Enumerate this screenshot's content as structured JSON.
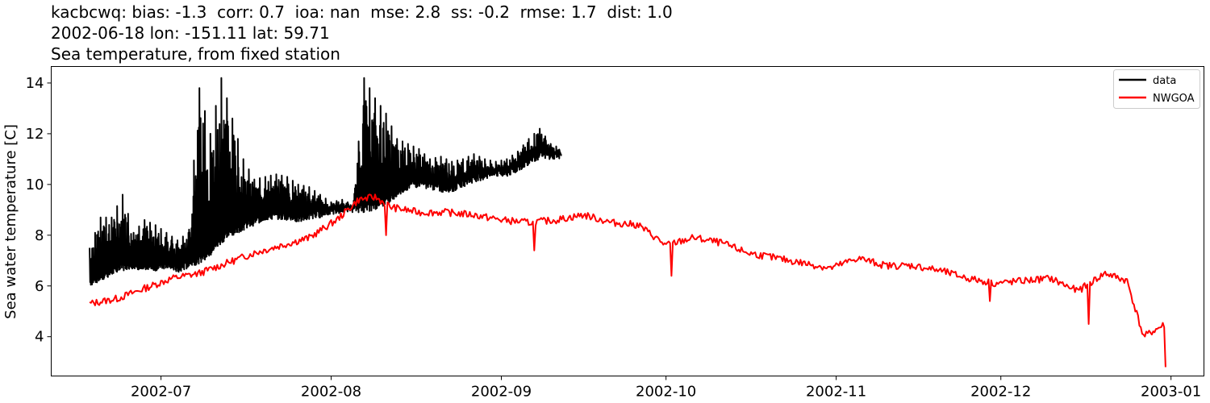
{
  "chart_data": {
    "type": "line",
    "title_lines": [
      "kacbcwq: bias: -1.3  corr: 0.7  ioa: nan  mse: 2.8  ss: -0.2  rmse: 1.7  dist: 1.0",
      "2002-06-18 lon: -151.11 lat: 59.71",
      "Sea temperature, from fixed station"
    ],
    "xlabel": "",
    "ylabel": "Sea water temperature [C]",
    "xlim": [
      "2002-06-11",
      "2003-01-07"
    ],
    "ylim": [
      2.45,
      14.65
    ],
    "x_ticks": [
      "2002-07",
      "2002-08",
      "2002-09",
      "2002-10",
      "2002-11",
      "2002-12",
      "2003-01"
    ],
    "y_ticks": [
      4,
      6,
      8,
      10,
      12,
      14
    ],
    "grid": false,
    "legend_position": "top-right",
    "series": [
      {
        "name": "data",
        "color": "#000000",
        "x": [
          "2002-06-18",
          "2002-06-20",
          "2002-06-22",
          "2002-06-24",
          "2002-06-26",
          "2002-06-28",
          "2002-06-30",
          "2002-07-02",
          "2002-07-04",
          "2002-07-06",
          "2002-07-08",
          "2002-07-10",
          "2002-07-12",
          "2002-07-14",
          "2002-07-16",
          "2002-07-18",
          "2002-07-20",
          "2002-07-22",
          "2002-07-24",
          "2002-07-26",
          "2002-07-28",
          "2002-07-30",
          "2002-08-01",
          "2002-08-03",
          "2002-08-05",
          "2002-08-07",
          "2002-08-09",
          "2002-08-11",
          "2002-08-13",
          "2002-08-15",
          "2002-08-17",
          "2002-08-19",
          "2002-08-21",
          "2002-08-23",
          "2002-08-25",
          "2002-08-27",
          "2002-08-29",
          "2002-08-31",
          "2002-09-02",
          "2002-09-04",
          "2002-09-06",
          "2002-09-08",
          "2002-09-10",
          "2002-09-12"
        ],
        "y_low": [
          6.0,
          6.2,
          6.4,
          6.6,
          6.7,
          6.5,
          6.6,
          6.7,
          6.5,
          6.7,
          6.9,
          7.2,
          7.7,
          8.0,
          8.2,
          8.4,
          8.6,
          8.6,
          8.6,
          8.5,
          8.6,
          8.7,
          8.8,
          8.9,
          8.9,
          8.9,
          9.0,
          9.2,
          9.5,
          9.8,
          9.9,
          9.8,
          9.7,
          9.7,
          9.9,
          10.1,
          10.2,
          10.3,
          10.3,
          10.5,
          10.8,
          11.0,
          11.0,
          11.0
        ],
        "y_high": [
          7.5,
          8.7,
          8.7,
          9.6,
          8.1,
          8.6,
          8.4,
          8.1,
          7.8,
          8.1,
          13.8,
          12.0,
          14.2,
          12.6,
          11.0,
          10.2,
          10.3,
          10.4,
          10.3,
          10.0,
          9.9,
          9.6,
          9.3,
          9.4,
          9.2,
          14.2,
          13.4,
          12.8,
          11.8,
          11.6,
          11.4,
          11.0,
          11.1,
          10.9,
          11.0,
          11.2,
          11.0,
          10.9,
          11.0,
          11.3,
          11.8,
          12.2,
          11.6,
          11.4
        ]
      },
      {
        "name": "NWGOA",
        "color": "#ff0000",
        "x": [
          "2002-06-18",
          "2002-06-23",
          "2002-06-28",
          "2002-07-03",
          "2002-07-08",
          "2002-07-13",
          "2002-07-18",
          "2002-07-23",
          "2002-07-28",
          "2002-08-02",
          "2002-08-06",
          "2002-08-09",
          "2002-08-12",
          "2002-08-17",
          "2002-08-22",
          "2002-08-27",
          "2002-09-01",
          "2002-09-06",
          "2002-09-11",
          "2002-09-16",
          "2002-09-21",
          "2002-09-26",
          "2002-10-01",
          "2002-10-06",
          "2002-10-11",
          "2002-10-16",
          "2002-10-21",
          "2002-10-26",
          "2002-10-31",
          "2002-11-05",
          "2002-11-10",
          "2002-11-15",
          "2002-11-20",
          "2002-11-25",
          "2002-11-30",
          "2002-12-05",
          "2002-12-10",
          "2002-12-15",
          "2002-12-20",
          "2002-12-24",
          "2002-12-27",
          "2002-12-31"
        ],
        "y": [
          5.3,
          5.5,
          5.9,
          6.3,
          6.5,
          6.9,
          7.3,
          7.6,
          7.9,
          8.6,
          9.4,
          9.5,
          9.1,
          8.9,
          8.9,
          8.8,
          8.6,
          8.5,
          8.6,
          8.8,
          8.5,
          8.4,
          7.6,
          7.9,
          7.7,
          7.3,
          7.1,
          6.9,
          6.7,
          7.1,
          6.8,
          6.8,
          6.6,
          6.3,
          6.1,
          6.2,
          6.3,
          5.8,
          6.5,
          6.2,
          4.0,
          4.5
        ],
        "spikes": [
          {
            "x": "2002-08-11",
            "y": 8.0
          },
          {
            "x": "2002-09-07",
            "y": 7.4
          },
          {
            "x": "2002-10-02",
            "y": 6.4
          },
          {
            "x": "2002-11-29",
            "y": 5.4
          },
          {
            "x": "2002-12-17",
            "y": 4.5
          },
          {
            "x": "2002-12-31",
            "y": 2.8
          }
        ]
      }
    ]
  }
}
